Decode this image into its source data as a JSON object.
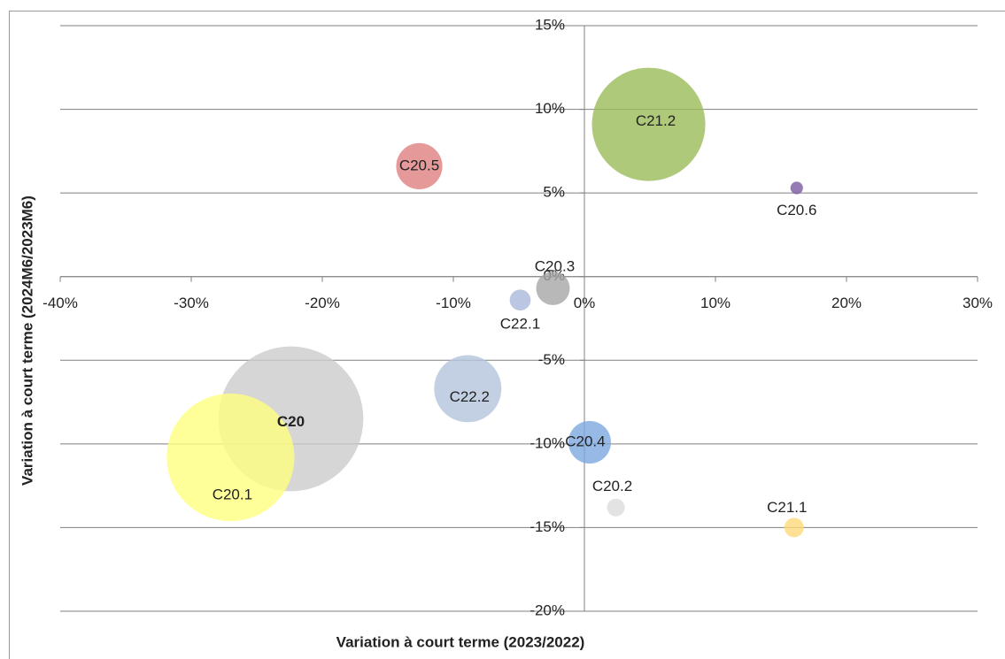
{
  "chart_data": {
    "type": "bubble",
    "x_label": "Variation à court terme (2023/2022)",
    "y_label": "Variation à court terme (2024M6/2023M6)",
    "labels": [
      "C21.2",
      "C20.5",
      "C20.6",
      "C20.3",
      "C22.1",
      "C20",
      "C20.1",
      "C22.2",
      "C20.4",
      "C20.2",
      "C21.1"
    ],
    "x": [
      4.9,
      -12.6,
      16.2,
      -2.4,
      -4.9,
      -22.4,
      -27.0,
      -8.9,
      0.4,
      2.4,
      16.0
    ],
    "y": [
      9.1,
      6.6,
      5.3,
      -0.7,
      -1.4,
      -8.5,
      -10.8,
      -6.7,
      -9.9,
      -13.8,
      -15.0
    ],
    "sizes": [
      41,
      6.8,
      0.5,
      3.6,
      1.4,
      67,
      52,
      14.4,
      5.8,
      1,
      1.2
    ],
    "colors": [
      "#9bbb59",
      "#e08080",
      "#7a5aa0",
      "#a6a6a6",
      "#aab8dc",
      "#cccccc",
      "#ffff80",
      "#b4c3dc",
      "#7da7e0",
      "#dcdcdc",
      "#ffd97a"
    ],
    "xlim": [
      -40,
      30
    ],
    "xticks": [
      {
        "value": -40,
        "label": "-40%"
      },
      {
        "value": -30,
        "label": "-30%"
      },
      {
        "value": -20,
        "label": "-20%"
      },
      {
        "value": -10,
        "label": "-10%"
      },
      {
        "value": 0,
        "label": "0%"
      },
      {
        "value": 10,
        "label": "10%"
      },
      {
        "value": 20,
        "label": "20%"
      },
      {
        "value": 30,
        "label": "30%"
      }
    ],
    "ylim": [
      -20,
      15
    ],
    "yticks": [
      {
        "value": -20,
        "label": "-20%"
      },
      {
        "value": -15,
        "label": "-15%"
      },
      {
        "value": -10,
        "label": "-10%"
      },
      {
        "value": -5,
        "label": "-5%"
      },
      {
        "value": 0,
        "label": "0%"
      },
      {
        "value": 5,
        "label": "5%"
      },
      {
        "value": 10,
        "label": "10%"
      },
      {
        "value": 15,
        "label": "15%"
      }
    ],
    "grid": true
  }
}
